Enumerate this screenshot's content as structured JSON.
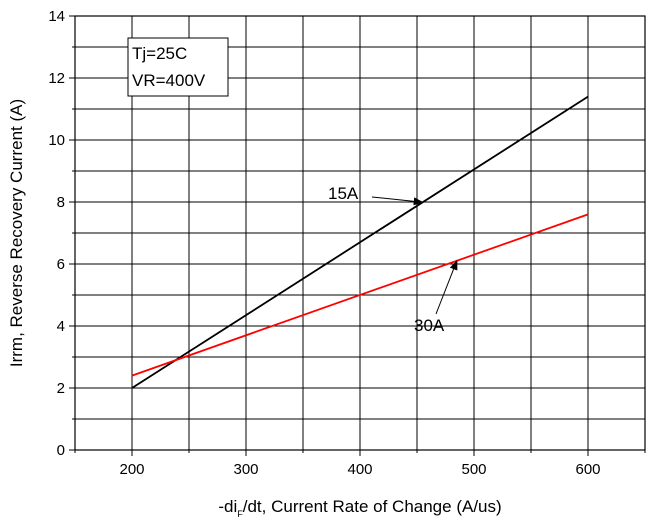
{
  "chart_data": {
    "type": "line",
    "xlabel_prefix": "-di",
    "xlabel_sub": "F",
    "xlabel_suffix": "/dt, Current Rate of Change (A/us)",
    "ylabel": "Irrm, Reverse Recovery Current (A)",
    "xlim": [
      150,
      650
    ],
    "ylim": [
      0,
      14
    ],
    "xticks": [
      200,
      300,
      400,
      500,
      600
    ],
    "yticks": [
      0,
      2,
      4,
      6,
      8,
      10,
      12,
      14
    ],
    "grid": true,
    "conditions": [
      "Tj=25C",
      "VR=400V"
    ],
    "series": [
      {
        "name": "15A",
        "color": "#000000",
        "x": [
          200,
          600
        ],
        "y": [
          2.0,
          11.4
        ]
      },
      {
        "name": "30A",
        "color": "#ff0000",
        "x": [
          200,
          600
        ],
        "y": [
          2.4,
          7.6
        ]
      }
    ],
    "annotations": [
      {
        "text": "15A",
        "series": "15A",
        "target_x": 455
      },
      {
        "text": "30A",
        "series": "30A",
        "target_x": 485
      }
    ]
  }
}
